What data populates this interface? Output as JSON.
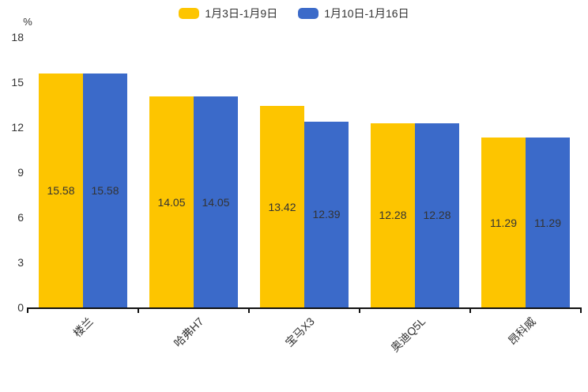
{
  "chart": {
    "unit_label": "%"
  },
  "chart_data": {
    "type": "bar",
    "title": "",
    "categories": [
      "楼兰",
      "哈弗H7",
      "宝马X3",
      "奥迪Q5L",
      "昂科威"
    ],
    "series": [
      {
        "name": "1月3日-1月9日",
        "color": "#FDC500",
        "values": [
          15.58,
          14.05,
          13.42,
          12.28,
          11.29
        ]
      },
      {
        "name": "1月10日-1月16日",
        "color": "#3B6AC9",
        "values": [
          15.58,
          14.05,
          12.39,
          12.28,
          11.29
        ]
      }
    ],
    "value_label_format": "2-decimals",
    "bar_label_position": "inside-center",
    "xlabel": "",
    "ylabel": "%",
    "ylim": [
      0,
      18
    ],
    "yticks": [
      0,
      3,
      6,
      9,
      12,
      15,
      18
    ],
    "grid": false,
    "legend_position": "top",
    "x_label_rotation_deg": 45,
    "axis_color": "#111111",
    "label_text_color": "#333333"
  }
}
